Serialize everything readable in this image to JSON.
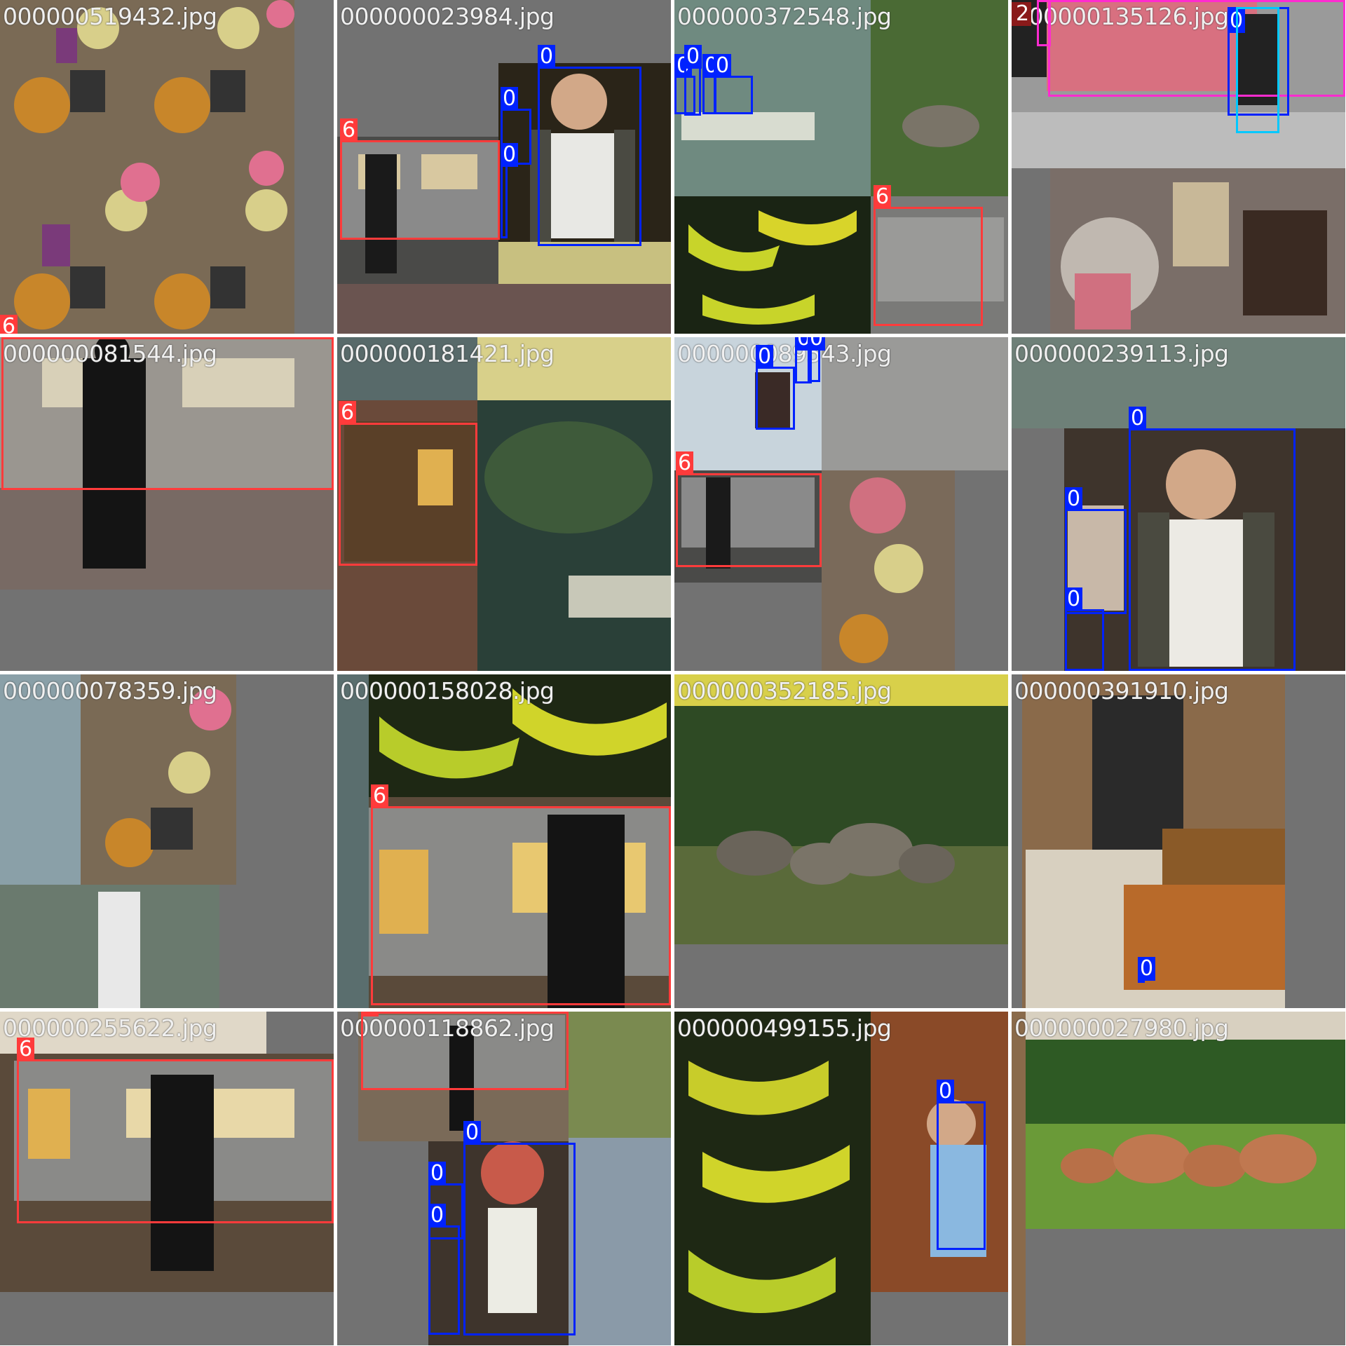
{
  "tiles": [
    {
      "file": "000000519432.jpg"
    },
    {
      "file": "000000023984.jpg"
    },
    {
      "file": "000000372548.jpg"
    },
    {
      "file": "000000135126.jpg"
    },
    {
      "file": "000000081544.jpg"
    },
    {
      "file": "000000181421.jpg"
    },
    {
      "file": "000000089543.jpg"
    },
    {
      "file": "000000239113.jpg"
    },
    {
      "file": "000000078359.jpg"
    },
    {
      "file": "000000158028.jpg"
    },
    {
      "file": "000000352185.jpg"
    },
    {
      "file": "000000391910.jpg"
    },
    {
      "file": "000000255622.jpg"
    },
    {
      "file": "000000118862.jpg"
    },
    {
      "file": "000000499155.jpg"
    },
    {
      "file": "000000027980.jpg"
    }
  ],
  "labels": {
    "person": "0",
    "train": "6",
    "car": "2"
  },
  "colors": {
    "train": "#ff3b3b",
    "person": "#0022ff",
    "car": "#ff2bd0",
    "tile_bg": "#727272"
  }
}
